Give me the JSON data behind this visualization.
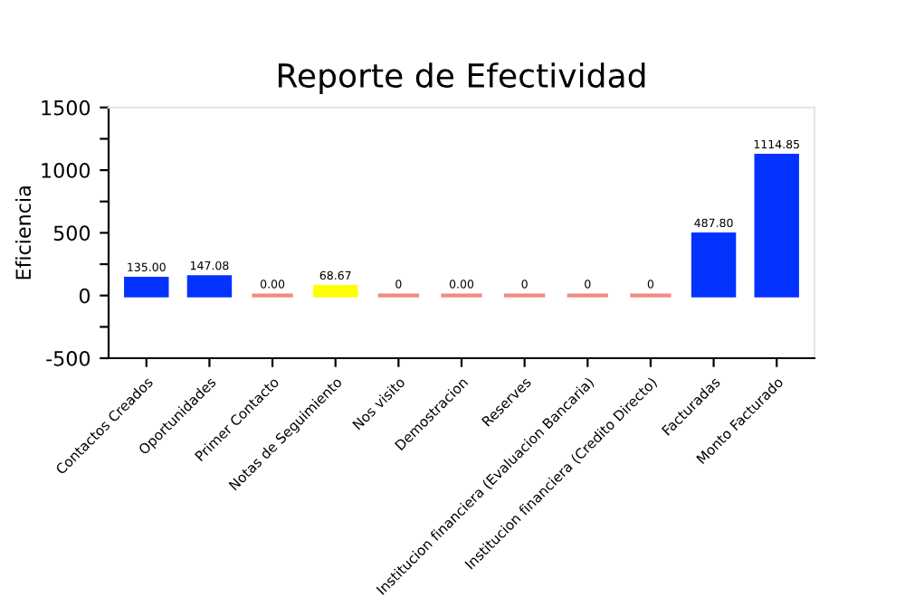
{
  "chart_data": {
    "type": "bar",
    "title": "Reporte de Efectividad",
    "ylabel": "Eficiencia",
    "categories": [
      "Contactos Creados",
      "Oportunidades",
      "Primer Contacto",
      "Notas de Seguimiento",
      "Nos visito",
      "Demostracion",
      "Reserves",
      "Institucion financiera (Evaluacion Bancaria)",
      "Institucion financiera (Credito Directo)",
      "Facturadas",
      "Monto Facturado"
    ],
    "values": [
      135.0,
      147.08,
      0.0,
      68.67,
      0,
      0.0,
      0,
      0,
      0,
      487.8,
      1114.85
    ],
    "value_labels": [
      "135.00",
      "147.08",
      "0.00",
      "68.67",
      "0",
      "0.00",
      "0",
      "0",
      "0",
      "487.80",
      "1114.85"
    ],
    "colors": [
      "#0433ff",
      "#0433ff",
      "#f28b82",
      "#ffff00",
      "#f28b82",
      "#f28b82",
      "#f28b82",
      "#f28b82",
      "#f28b82",
      "#0433ff",
      "#0433ff"
    ],
    "ylim": [
      -500,
      1500
    ],
    "yticks": [
      -500,
      {
        "value": -250,
        "label": null
      },
      0,
      {
        "value": 250,
        "label": null
      },
      500,
      {
        "value": 750,
        "label": null
      },
      1000,
      {
        "value": 1250,
        "label": null
      },
      1500
    ],
    "grid": false,
    "legend": false
  }
}
